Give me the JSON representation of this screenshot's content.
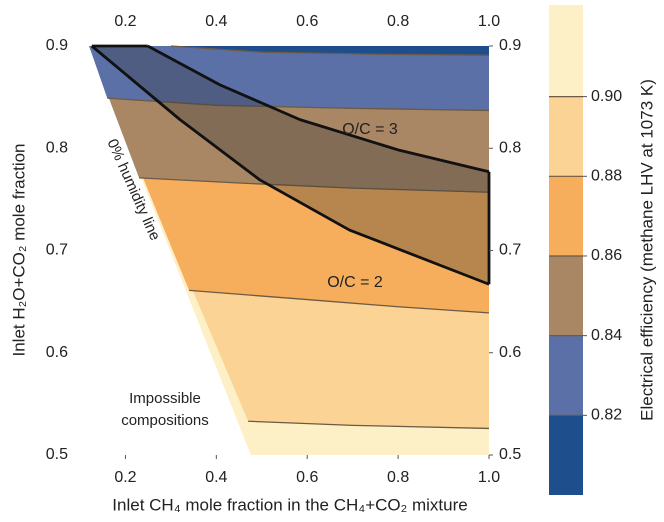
{
  "chart_data": {
    "type": "contour",
    "x_label": "Inlet CH₄ mole fraction in the CH₄+CO₂ mixture",
    "y_label": "Inlet H₂O+CO₂ mole fraction",
    "colorbar_label": "Electrical efficiency (methane LHV at 1073 K)",
    "xlim": [
      0.1,
      1.0
    ],
    "ylim": [
      0.5,
      0.9
    ],
    "xticks": [
      0.2,
      0.4,
      0.6,
      0.8,
      {
        "value": 1.0,
        "label": "1.0"
      }
    ],
    "yticks": [
      0.5,
      0.6,
      0.7,
      0.8,
      0.9
    ],
    "clim": [
      0.8,
      0.923
    ],
    "cticks": [
      0.82,
      0.84,
      0.86,
      0.88,
      {
        "value": 0.9,
        "label": "0.90"
      }
    ],
    "levels": [
      0.82,
      0.84,
      0.86,
      0.88,
      0.9
    ],
    "band_colors": [
      "#1f4e8c",
      "#5a70a6",
      "#a98664",
      "#f6ae5c",
      "#fbd394",
      "#fdf0c6"
    ],
    "contour_color": "#6b5a45",
    "contours": [
      {
        "x": [
          0.3,
          0.5,
          0.75,
          1.0
        ],
        "y": [
          0.9,
          0.894,
          0.892,
          0.891
        ]
      },
      {
        "x": [
          0.16,
          0.4,
          0.7,
          1.0
        ],
        "y": [
          0.849,
          0.842,
          0.839,
          0.837
        ]
      },
      {
        "x": [
          0.23,
          0.45,
          0.7,
          1.0
        ],
        "y": [
          0.771,
          0.766,
          0.761,
          0.757
        ]
      },
      {
        "x": [
          0.34,
          0.6,
          0.8,
          1.0
        ],
        "y": [
          0.661,
          0.652,
          0.645,
          0.639
        ]
      },
      {
        "x": [
          0.47,
          0.7,
          1.0
        ],
        "y": [
          0.533,
          0.529,
          0.526
        ]
      }
    ],
    "boundary": {
      "label": "0% humidity line",
      "x": [
        0.12,
        0.476
      ],
      "y": [
        0.9,
        0.5
      ]
    },
    "infeasible_label": [
      "Impossible",
      "compositions"
    ],
    "oc_curves": [
      {
        "label": "O/C = 3",
        "x": [
          0.249,
          0.408,
          0.584,
          0.803,
          1.0
        ],
        "y": [
          0.9,
          0.862,
          0.828,
          0.798,
          0.777
        ]
      },
      {
        "label": "O/C = 2",
        "x": [
          0.126,
          0.32,
          0.496,
          0.693,
          1.0
        ],
        "y": [
          0.9,
          0.828,
          0.769,
          0.72,
          0.667
        ]
      }
    ]
  }
}
